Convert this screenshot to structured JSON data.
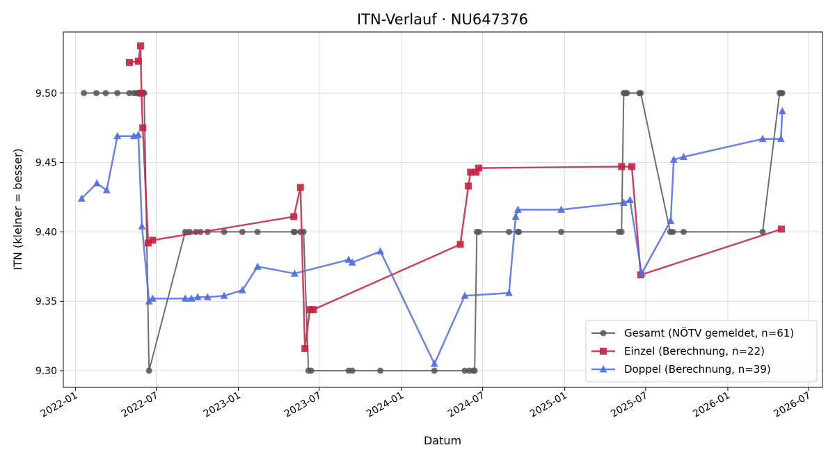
{
  "chart_data": {
    "type": "line",
    "title": "ITN-Verlauf · NU647376",
    "xlabel": "Datum",
    "ylabel": "ITN  (kleiner = besser)",
    "ylim": [
      9.288,
      9.544
    ],
    "xlim": [
      "2021-12-05",
      "2026-08-01"
    ],
    "grid": true,
    "legend_position": "lower-right",
    "x_ticks": [
      "2022-01",
      "2022-07",
      "2023-01",
      "2023-07",
      "2024-01",
      "2024-07",
      "2025-01",
      "2025-07",
      "2026-01",
      "2026-07"
    ],
    "y_ticks": [
      "9.30",
      "9.35",
      "9.40",
      "9.45",
      "9.50"
    ],
    "series": [
      {
        "name": "Gesamt (NÖTV gemeldet, n=61)",
        "color": "#555555",
        "marker": "circle",
        "points": [
          [
            "2022-01-20",
            9.5
          ],
          [
            "2022-02-17",
            9.5
          ],
          [
            "2022-03-10",
            9.5
          ],
          [
            "2022-04-05",
            9.5
          ],
          [
            "2022-05-02",
            9.5
          ],
          [
            "2022-05-12",
            9.5
          ],
          [
            "2022-05-18",
            9.5
          ],
          [
            "2022-05-22",
            9.5
          ],
          [
            "2022-05-25",
            9.5
          ],
          [
            "2022-05-27",
            9.5
          ],
          [
            "2022-06-01",
            9.5
          ],
          [
            "2022-06-04",
            9.5
          ],
          [
            "2022-06-15",
            9.3
          ],
          [
            "2022-09-04",
            9.4
          ],
          [
            "2022-09-14",
            9.4
          ],
          [
            "2022-09-28",
            9.4
          ],
          [
            "2022-10-08",
            9.4
          ],
          [
            "2022-10-24",
            9.4
          ],
          [
            "2022-11-30",
            9.4
          ],
          [
            "2023-01-10",
            9.4
          ],
          [
            "2023-02-13",
            9.4
          ],
          [
            "2023-05-05",
            9.4
          ],
          [
            "2023-05-07",
            9.4
          ],
          [
            "2023-05-20",
            9.4
          ],
          [
            "2023-05-27",
            9.4
          ],
          [
            "2023-06-07",
            9.3
          ],
          [
            "2023-06-13",
            9.3
          ],
          [
            "2023-09-05",
            9.3
          ],
          [
            "2023-09-13",
            9.3
          ],
          [
            "2023-11-15",
            9.3
          ],
          [
            "2024-03-15",
            9.3
          ],
          [
            "2024-05-22",
            9.3
          ],
          [
            "2024-06-01",
            9.3
          ],
          [
            "2024-06-10",
            9.3
          ],
          [
            "2024-06-13",
            9.3
          ],
          [
            "2024-06-18",
            9.4
          ],
          [
            "2024-06-23",
            9.4
          ],
          [
            "2024-08-29",
            9.4
          ],
          [
            "2024-09-18",
            9.4
          ],
          [
            "2024-09-20",
            9.4
          ],
          [
            "2024-12-24",
            9.4
          ],
          [
            "2025-05-02",
            9.4
          ],
          [
            "2025-05-08",
            9.4
          ],
          [
            "2025-05-13",
            9.5
          ],
          [
            "2025-05-17",
            9.5
          ],
          [
            "2025-05-20",
            9.5
          ],
          [
            "2025-06-17",
            9.5
          ],
          [
            "2025-06-20",
            9.5
          ],
          [
            "2025-08-25",
            9.4
          ],
          [
            "2025-08-31",
            9.4
          ],
          [
            "2025-09-24",
            9.4
          ],
          [
            "2026-03-20",
            9.4
          ],
          [
            "2026-04-27",
            9.5
          ],
          [
            "2026-04-30",
            9.5
          ],
          [
            "2026-05-03",
            9.5
          ]
        ]
      },
      {
        "name": "Einzel (Berechnung, n=22)",
        "color": "#c62240",
        "marker": "square",
        "points": [
          [
            "2022-05-02",
            9.522
          ],
          [
            "2022-05-22",
            9.523
          ],
          [
            "2022-05-27",
            9.534
          ],
          [
            "2022-05-29",
            9.5
          ],
          [
            "2022-06-01",
            9.475
          ],
          [
            "2022-06-13",
            9.392
          ],
          [
            "2022-06-23",
            9.394
          ],
          [
            "2023-05-05",
            9.411
          ],
          [
            "2023-05-20",
            9.432
          ],
          [
            "2023-05-30",
            9.316
          ],
          [
            "2023-06-10",
            9.344
          ],
          [
            "2023-06-18",
            9.344
          ],
          [
            "2024-05-12",
            9.391
          ],
          [
            "2024-05-30",
            9.433
          ],
          [
            "2024-06-04",
            9.443
          ],
          [
            "2024-06-16",
            9.443
          ],
          [
            "2024-06-22",
            9.446
          ],
          [
            "2025-05-08",
            9.447
          ],
          [
            "2025-05-31",
            9.447
          ],
          [
            "2025-06-20",
            9.369
          ],
          [
            "2026-05-01",
            9.402
          ]
        ]
      },
      {
        "name": "Doppel (Berechnung, n=39)",
        "color": "#4d6be8",
        "marker": "triangle",
        "points": [
          [
            "2022-01-15",
            9.424
          ],
          [
            "2022-02-18",
            9.435
          ],
          [
            "2022-03-12",
            9.43
          ],
          [
            "2022-04-05",
            9.469
          ],
          [
            "2022-05-12",
            9.469
          ],
          [
            "2022-05-22",
            9.47
          ],
          [
            "2022-05-30",
            9.404
          ],
          [
            "2022-06-15",
            9.35
          ],
          [
            "2022-06-23",
            9.352
          ],
          [
            "2022-09-04",
            9.352
          ],
          [
            "2022-09-18",
            9.352
          ],
          [
            "2022-10-02",
            9.353
          ],
          [
            "2022-10-24",
            9.353
          ],
          [
            "2022-11-30",
            9.354
          ],
          [
            "2023-01-10",
            9.358
          ],
          [
            "2023-02-13",
            9.375
          ],
          [
            "2023-05-07",
            9.37
          ],
          [
            "2023-09-05",
            9.38
          ],
          [
            "2023-09-13",
            9.378
          ],
          [
            "2023-11-15",
            9.386
          ],
          [
            "2024-03-15",
            9.305
          ],
          [
            "2024-05-22",
            9.354
          ],
          [
            "2024-08-29",
            9.356
          ],
          [
            "2024-09-13",
            9.411
          ],
          [
            "2024-09-18",
            9.416
          ],
          [
            "2024-12-24",
            9.416
          ],
          [
            "2025-05-13",
            9.421
          ],
          [
            "2025-05-27",
            9.423
          ],
          [
            "2025-06-22",
            9.37
          ],
          [
            "2025-08-26",
            9.408
          ],
          [
            "2025-09-02",
            9.452
          ],
          [
            "2025-09-24",
            9.454
          ],
          [
            "2026-03-20",
            9.467
          ],
          [
            "2026-04-30",
            9.467
          ],
          [
            "2026-05-03",
            9.487
          ]
        ]
      }
    ]
  }
}
